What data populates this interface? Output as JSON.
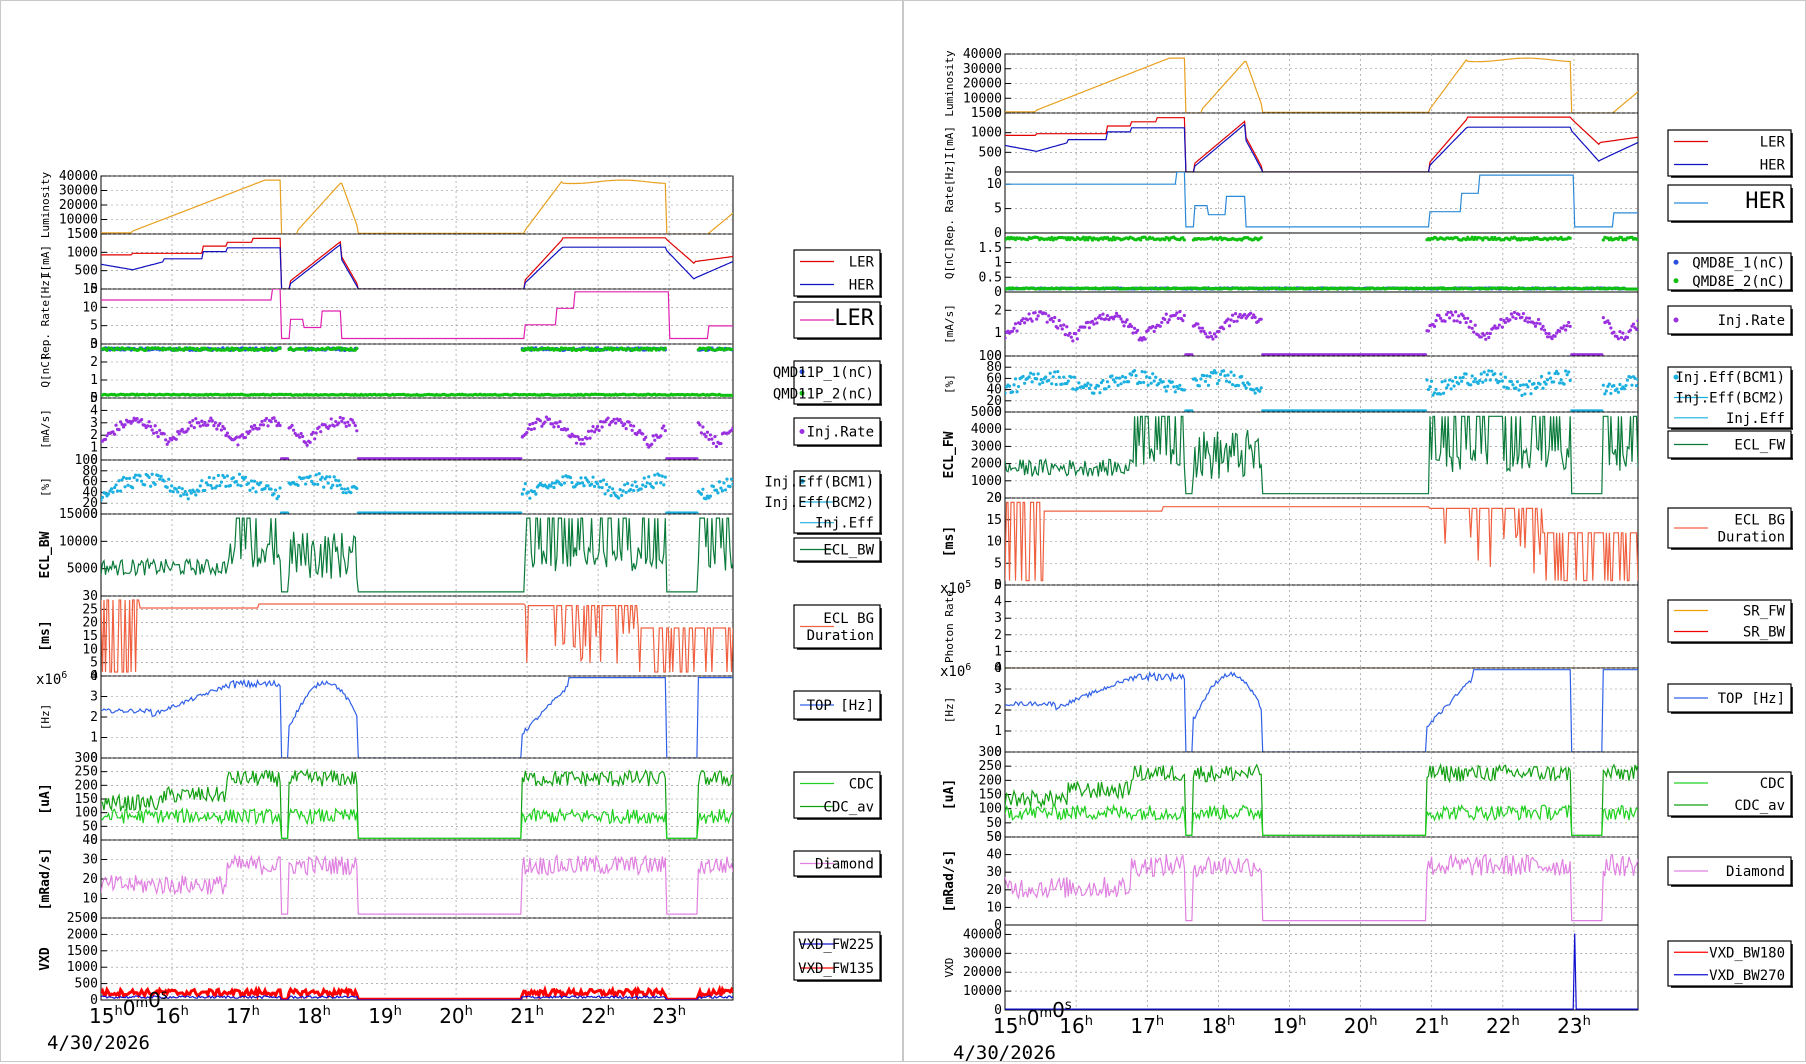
{
  "colors": {
    "orange": "#e8a020",
    "red": "#e00000",
    "blue": "#1010c0",
    "magenta": "#e020b0",
    "lightblue": "#2a8ad8",
    "royal": "#3060e8",
    "bluedot": "#2a4fe0",
    "green": "#10c010",
    "purple": "#9a30e0",
    "cyan": "#1cb0e0",
    "darkgreen": "#0a7a3a",
    "salmon": "#f06040",
    "cdcgreen": "#12a012",
    "cdclight": "#20d020",
    "violet": "#e080e0",
    "brightred": "#ff0000",
    "vxdblue": "#1010d0",
    "srorange": "#f0a000",
    "srred": "#f00000"
  },
  "chart_data": [
    {
      "type": "line",
      "id": "left",
      "x_ticks": [
        "15h0m0s",
        "16h",
        "17h",
        "18h",
        "19h",
        "20h",
        "21h",
        "22h",
        "23h"
      ],
      "date_label": "4/30/2026",
      "panels": [
        {
          "ylabel": "Luminosity",
          "yticks": [
            "0",
            "10000",
            "20000",
            "30000",
            "40000"
          ],
          "ylim": [
            0,
            40000
          ],
          "series": [
            {
              "color": "orange",
              "kind": "lumi"
            }
          ],
          "legend": []
        },
        {
          "ylabel": "I[mA]",
          "yticks": [
            "0",
            "500",
            "1000",
            "1500"
          ],
          "ylim": [
            0,
            1500
          ],
          "series": [
            {
              "color": "red",
              "kind": "ler"
            },
            {
              "color": "blue",
              "kind": "her"
            }
          ],
          "legend": [
            {
              "name": "LER",
              "color": "red"
            },
            {
              "name": "HER",
              "color": "blue"
            }
          ]
        },
        {
          "ylabel": "Rep. Rate[Hz]",
          "yticks": [
            "0",
            "5",
            "10",
            "15"
          ],
          "ylim": [
            0,
            15
          ],
          "series": [
            {
              "color": "magenta",
              "kind": "rep"
            }
          ],
          "legend": [
            {
              "name": "LER",
              "color": "magenta",
              "big": true
            }
          ]
        },
        {
          "ylabel": "Q[nC]",
          "yticks": [
            "0",
            "1",
            "2",
            "3"
          ],
          "ylim": [
            0,
            3
          ],
          "series": [
            {
              "color": "bluedot",
              "kind": "qhi"
            },
            {
              "color": "green",
              "kind": "qhi"
            },
            {
              "color": "green",
              "kind": "qlo"
            }
          ],
          "legend": [
            {
              "name": "QMD11P_1(nC)",
              "color": "bluedot",
              "dot": true
            },
            {
              "name": "QMD11P_2(nC)",
              "color": "green",
              "dot": true
            }
          ]
        },
        {
          "ylabel": "[mA/s]",
          "yticks": [
            "0",
            "1",
            "2",
            "3",
            "4",
            "5"
          ],
          "ylim": [
            0,
            5
          ],
          "series": [
            {
              "color": "purple",
              "kind": "injrate"
            }
          ],
          "legend": [
            {
              "name": "Inj.Rate",
              "color": "purple",
              "dot": true
            }
          ]
        },
        {
          "ylabel": "[%]",
          "yticks": [
            "0",
            "20",
            "40",
            "60",
            "80",
            "100"
          ],
          "ylim": [
            0,
            100
          ],
          "series": [
            {
              "color": "cyan",
              "kind": "eff"
            }
          ],
          "legend": [
            {
              "name": "Inj.Eff(BCM1)",
              "color": "cyan",
              "dot": true
            },
            {
              "name": "Inj.Eff(BCM2)",
              "color": "cyan"
            },
            {
              "name": "Inj.Eff",
              "color": "cyan"
            }
          ]
        },
        {
          "ylabel": "ECL_BW",
          "bold": true,
          "yticks": [
            "5000",
            "10000",
            "15000"
          ],
          "ylim": [
            0,
            15000
          ],
          "series": [
            {
              "color": "darkgreen",
              "kind": "ecl"
            }
          ],
          "legend": [
            {
              "name": "ECL_BW",
              "color": "darkgreen"
            }
          ]
        },
        {
          "ylabel": "[ms]",
          "bold": true,
          "yticks": [
            "0",
            "5",
            "10",
            "15",
            "20",
            "25",
            "30"
          ],
          "ylim": [
            0,
            30
          ],
          "series": [
            {
              "color": "salmon",
              "kind": "eclbg"
            }
          ],
          "legend": [
            {
              "name": "ECL BG\nDuration",
              "color": "salmon"
            }
          ]
        },
        {
          "ylabel": "[Hz]",
          "yticks": [
            "0",
            "1",
            "2",
            "3",
            "4"
          ],
          "ylim": [
            0,
            4
          ],
          "exp": "x10",
          "exp_pow": "6",
          "series": [
            {
              "color": "royal",
              "kind": "top"
            }
          ],
          "legend": [
            {
              "name": "TOP [Hz]",
              "color": "royal"
            }
          ]
        },
        {
          "ylabel": "[uA]",
          "bold": true,
          "yticks": [
            "0",
            "50",
            "100",
            "150",
            "200",
            "250",
            "300"
          ],
          "ylim": [
            0,
            300
          ],
          "series": [
            {
              "color": "cdcgreen",
              "kind": "cdc"
            },
            {
              "color": "cdclight",
              "kind": "cdcav"
            }
          ],
          "legend": [
            {
              "name": "CDC",
              "color": "cdclight"
            },
            {
              "name": "CDC_av",
              "color": "cdcgreen"
            }
          ]
        },
        {
          "ylabel": "[mRad/s]",
          "bold": true,
          "yticks": [
            "0",
            "10",
            "20",
            "30",
            "40"
          ],
          "ylim": [
            0,
            40
          ],
          "series": [
            {
              "color": "violet",
              "kind": "diamond"
            }
          ],
          "legend": [
            {
              "name": "Diamond",
              "color": "violet"
            }
          ]
        },
        {
          "ylabel": "VXD",
          "bold": true,
          "yticks": [
            "0",
            "500",
            "1000",
            "1500",
            "2000",
            "2500"
          ],
          "ylim": [
            0,
            2500
          ],
          "series": [
            {
              "color": "brightred",
              "kind": "vxdred"
            },
            {
              "color": "vxdblue",
              "kind": "vxdblue"
            }
          ],
          "legend": [
            {
              "name": "VXD_FW225",
              "color": "vxdblue"
            },
            {
              "name": "VXD_FW135",
              "color": "brightred"
            }
          ]
        }
      ]
    },
    {
      "type": "line",
      "id": "right",
      "x_ticks": [
        "15h0m0s",
        "16h",
        "17h",
        "18h",
        "19h",
        "20h",
        "21h",
        "22h",
        "23h"
      ],
      "date_label": "4/30/2026",
      "panels": [
        {
          "ylabel": "Luminosity",
          "yticks": [
            "0",
            "10000",
            "20000",
            "30000",
            "40000"
          ],
          "ylim": [
            0,
            40000
          ],
          "series": [
            {
              "color": "orange",
              "kind": "lumi"
            }
          ],
          "legend": []
        },
        {
          "ylabel": "I[mA]",
          "yticks": [
            "0",
            "500",
            "1000",
            "1500"
          ],
          "ylim": [
            0,
            1500
          ],
          "series": [
            {
              "color": "red",
              "kind": "ler"
            },
            {
              "color": "blue",
              "kind": "her"
            }
          ],
          "legend": [
            {
              "name": "LER",
              "color": "red"
            },
            {
              "name": "HER",
              "color": "blue"
            }
          ]
        },
        {
          "ylabel": "Rep. Rate[Hz]",
          "yticks": [
            "0",
            "5",
            "10"
          ],
          "ylim": [
            0,
            12.5
          ],
          "series": [
            {
              "color": "lightblue",
              "kind": "rep"
            }
          ],
          "legend": [
            {
              "name": "HER",
              "color": "lightblue",
              "big": true
            }
          ]
        },
        {
          "ylabel": "Q[nC]",
          "yticks": [
            "0",
            "0.5",
            "1",
            "1.5"
          ],
          "ylim": [
            0,
            2
          ],
          "series": [
            {
              "color": "bluedot",
              "kind": "qlo"
            },
            {
              "color": "green",
              "kind": "qhi"
            },
            {
              "color": "green",
              "kind": "qlo"
            }
          ],
          "legend": [
            {
              "name": "QMD8E_1(nC)",
              "color": "bluedot",
              "dot": true
            },
            {
              "name": "QMD8E_2(nC)",
              "color": "green",
              "dot": true
            }
          ]
        },
        {
          "ylabel": "[mA/s]",
          "yticks": [
            "0",
            "1",
            "2"
          ],
          "ylim": [
            0,
            2.8
          ],
          "series": [
            {
              "color": "purple",
              "kind": "injrate"
            }
          ],
          "legend": [
            {
              "name": "Inj.Rate",
              "color": "purple",
              "dot": true
            }
          ]
        },
        {
          "ylabel": "[%]",
          "yticks": [
            "0",
            "20",
            "40",
            "60",
            "80",
            "100"
          ],
          "ylim": [
            0,
            100
          ],
          "series": [
            {
              "color": "cyan",
              "kind": "eff"
            }
          ],
          "legend": [
            {
              "name": "Inj.Eff(BCM1)",
              "color": "cyan",
              "dot": true
            },
            {
              "name": "Inj.Eff(BCM2)",
              "color": "cyan"
            },
            {
              "name": "Inj.Eff",
              "color": "cyan"
            }
          ]
        },
        {
          "ylabel": "ECL_FW",
          "bold": true,
          "yticks": [
            "0",
            "1000",
            "2000",
            "3000",
            "4000",
            "5000"
          ],
          "ylim": [
            0,
            5000
          ],
          "series": [
            {
              "color": "darkgreen",
              "kind": "ecl"
            }
          ],
          "legend": [
            {
              "name": "ECL_FW",
              "color": "darkgreen"
            }
          ]
        },
        {
          "ylabel": "[ms]",
          "bold": true,
          "yticks": [
            "0",
            "5",
            "10",
            "15",
            "20"
          ],
          "ylim": [
            0,
            20
          ],
          "series": [
            {
              "color": "salmon",
              "kind": "eclbg"
            }
          ],
          "legend": [
            {
              "name": "ECL BG\nDuration",
              "color": "salmon"
            }
          ]
        },
        {
          "ylabel": "Photon Rate",
          "yticks": [
            "0",
            "1",
            "2",
            "3",
            "4",
            "5"
          ],
          "ylim": [
            0,
            5
          ],
          "exp": "x10",
          "exp_pow": "5",
          "series": [
            {
              "color": "srorange",
              "kind": "zero"
            }
          ],
          "legend": [
            {
              "name": "SR_FW",
              "color": "srorange"
            },
            {
              "name": "SR_BW",
              "color": "srred"
            }
          ]
        },
        {
          "ylabel": "[Hz]",
          "yticks": [
            "0",
            "1",
            "2",
            "3",
            "4"
          ],
          "ylim": [
            0,
            4
          ],
          "exp": "x10",
          "exp_pow": "6",
          "series": [
            {
              "color": "royal",
              "kind": "top"
            }
          ],
          "legend": [
            {
              "name": "TOP [Hz]",
              "color": "royal"
            }
          ]
        },
        {
          "ylabel": "[uA]",
          "bold": true,
          "yticks": [
            "0",
            "50",
            "100",
            "150",
            "200",
            "250",
            "300"
          ],
          "ylim": [
            0,
            300
          ],
          "series": [
            {
              "color": "cdcgreen",
              "kind": "cdc"
            },
            {
              "color": "cdclight",
              "kind": "cdcav"
            }
          ],
          "legend": [
            {
              "name": "CDC",
              "color": "cdclight"
            },
            {
              "name": "CDC_av",
              "color": "cdcgreen"
            }
          ]
        },
        {
          "ylabel": "[mRad/s]",
          "bold": true,
          "yticks": [
            "0",
            "10",
            "20",
            "30",
            "40",
            "50"
          ],
          "ylim": [
            0,
            50
          ],
          "series": [
            {
              "color": "violet",
              "kind": "diamond"
            }
          ],
          "legend": [
            {
              "name": "Diamond",
              "color": "violet"
            }
          ]
        },
        {
          "ylabel": "VXD",
          "yticks": [
            "0",
            "10000",
            "20000",
            "30000",
            "40000"
          ],
          "ylim": [
            0,
            45000
          ],
          "series": [
            {
              "color": "vxdblue",
              "kind": "vxdspike"
            }
          ],
          "legend": [
            {
              "name": "VXD_BW180",
              "color": "brightred"
            },
            {
              "name": "VXD_BW270",
              "color": "vxdblue"
            }
          ]
        }
      ]
    }
  ]
}
